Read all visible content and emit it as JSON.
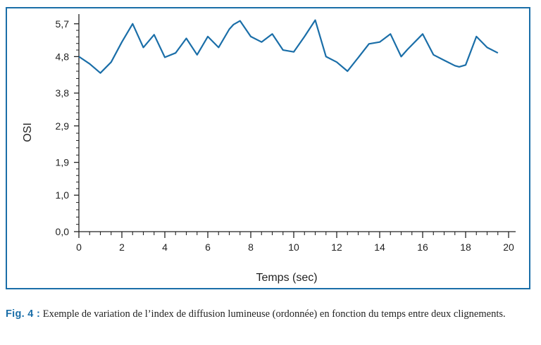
{
  "chart_data": {
    "type": "line",
    "xlabel": "Temps (sec)",
    "ylabel": "OSI",
    "xlim": [
      0,
      20
    ],
    "ylim": [
      0,
      5.85
    ],
    "x_ticks": [
      "0",
      "2",
      "4",
      "6",
      "8",
      "10",
      "12",
      "14",
      "16",
      "18",
      "20"
    ],
    "y_ticks": [
      "0,0",
      "1,0",
      "1,9",
      "2,9",
      "3,8",
      "4,8",
      "5,7"
    ],
    "color": "#1a6ea8",
    "x": [
      0,
      0.5,
      1,
      1.5,
      2,
      2.5,
      3,
      3.5,
      4,
      4.5,
      5,
      5.5,
      6,
      6.5,
      7,
      7.2,
      7.5,
      8,
      8.5,
      9,
      9.5,
      10,
      10.5,
      11,
      11.5,
      12,
      12.5,
      13,
      13.5,
      14,
      14.5,
      15,
      15.3,
      16,
      16.5,
      17,
      17.5,
      17.7,
      18,
      18.5,
      19,
      19.5
    ],
    "y": [
      4.8,
      4.6,
      4.35,
      4.65,
      5.2,
      5.7,
      5.05,
      5.4,
      4.78,
      4.9,
      5.3,
      4.85,
      5.35,
      5.05,
      5.55,
      5.68,
      5.78,
      5.35,
      5.2,
      5.42,
      4.98,
      4.93,
      5.35,
      5.8,
      4.8,
      4.65,
      4.4,
      4.77,
      5.15,
      5.2,
      5.42,
      4.8,
      5.0,
      5.42,
      4.85,
      4.7,
      4.55,
      4.52,
      4.57,
      5.35,
      5.05,
      4.9
    ]
  },
  "caption": {
    "label": "Fig. 4 :",
    "text": " Exemple de variation de l’index de diffusion lumineuse (ordonnée) en fonction du temps entre deux clignements."
  }
}
